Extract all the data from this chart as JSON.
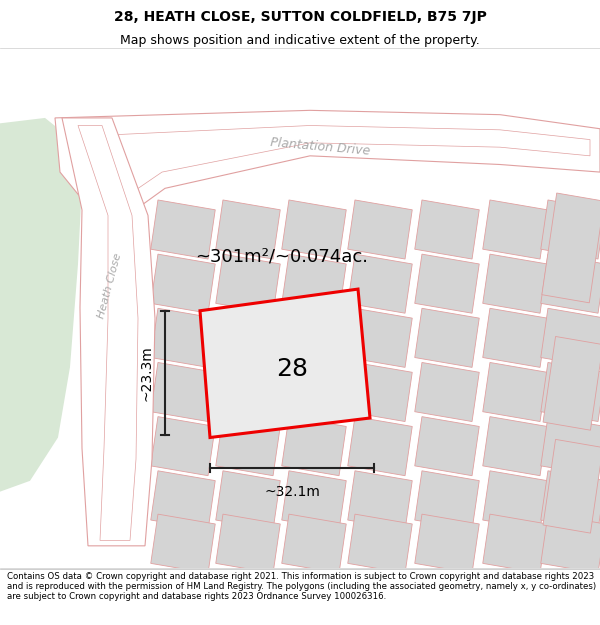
{
  "title_line1": "28, HEATH CLOSE, SUTTON COLDFIELD, B75 7JP",
  "title_line2": "Map shows position and indicative extent of the property.",
  "area_text": "~301m²/~0.074ac.",
  "number_label": "28",
  "width_label": "~32.1m",
  "height_label": "~23.3m",
  "copyright_text": "Contains OS data © Crown copyright and database right 2021. This information is subject to Crown copyright and database rights 2023 and is reproduced with the permission of HM Land Registry. The polygons (including the associated geometry, namely x, y co-ordinates) are subject to Crown copyright and database rights 2023 Ordnance Survey 100026316.",
  "bg_map_color": "#f0f0ee",
  "bg_green_color": "#d8e8d5",
  "road_fill_color": "#ffffff",
  "building_fill_color": "#d4d4d4",
  "road_stroke_color": "#e0a0a0",
  "red_outline_color": "#ee0000",
  "dim_line_color": "#222222",
  "title_fontsize": 10,
  "subtitle_fontsize": 9,
  "area_fontsize": 13,
  "label_fontsize": 18,
  "dim_fontsize": 10,
  "road_label_color": "#aaaaaa",
  "copyright_fontsize": 6.2
}
